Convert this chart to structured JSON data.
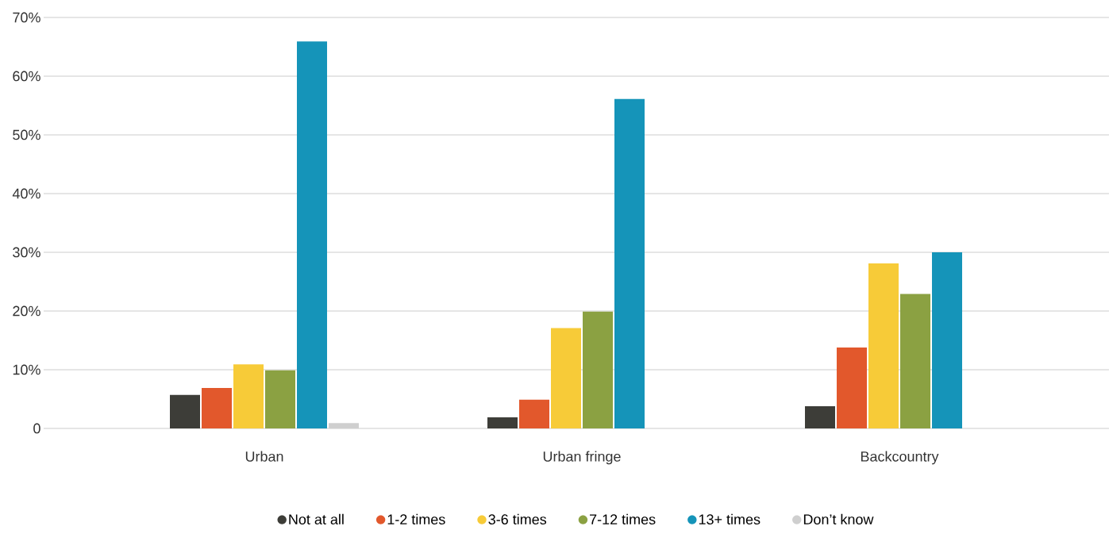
{
  "chart_data": {
    "type": "bar",
    "categories": [
      "Urban",
      "Urban fringe",
      "Backcountry"
    ],
    "series": [
      {
        "name": "Not at all",
        "color": "#3d3d38",
        "values": [
          5.7,
          1.9,
          3.8
        ]
      },
      {
        "name": "1-2 times",
        "color": "#e2582c",
        "values": [
          6.9,
          4.9,
          13.8
        ]
      },
      {
        "name": "3-6 times",
        "color": "#f7cb38",
        "values": [
          10.9,
          17.1,
          28.1
        ]
      },
      {
        "name": "7-12 times",
        "color": "#8ba142",
        "values": [
          9.9,
          19.9,
          22.9
        ]
      },
      {
        "name": "13+ times",
        "color": "#1594b9",
        "values": [
          65.9,
          56.1,
          30
        ]
      },
      {
        "name": "Don’t know",
        "color": "#cfcfcf",
        "values": [
          0.9,
          null,
          null
        ]
      }
    ],
    "ylim": [
      0,
      70
    ],
    "yticks": [
      0,
      {
        "value": 10,
        "label": "10%"
      },
      {
        "value": 20,
        "label": "20%"
      },
      {
        "value": 30,
        "label": "30%"
      },
      {
        "value": 40,
        "label": "40%"
      },
      {
        "value": 50,
        "label": "50%"
      },
      {
        "value": 60,
        "label": "60%"
      },
      {
        "value": 70,
        "label": "70%"
      }
    ],
    "grid": "y",
    "legend": "bottom",
    "marker": "circle"
  }
}
